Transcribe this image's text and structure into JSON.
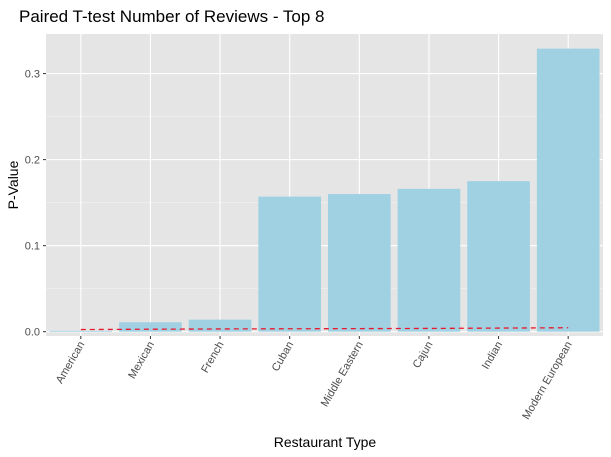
{
  "chart_data": {
    "type": "bar",
    "title": "Paired T-test Number of Reviews - Top 8",
    "xlabel": "Restaurant Type",
    "ylabel": "P-Value",
    "categories": [
      "American",
      "Mexican",
      "French",
      "Cuban",
      "Middle Eastern",
      "Cajun",
      "Indian",
      "Modern European"
    ],
    "values": [
      0.001,
      0.011,
      0.014,
      0.157,
      0.16,
      0.166,
      0.175,
      0.329
    ],
    "reference_line": {
      "style": "dashed",
      "color": "#e8192c",
      "values": [
        0.0025,
        0.0029,
        0.0032,
        0.0034,
        0.0036,
        0.0038,
        0.0042,
        0.0046
      ]
    },
    "ylim": [
      -0.005,
      0.346
    ],
    "yticks": [
      0.0,
      0.1,
      0.2,
      0.3
    ],
    "ytick_labels": [
      "0.0",
      "0.1",
      "0.2",
      "0.3"
    ],
    "grid": true,
    "colors": {
      "bar": "#a0d1e3",
      "panel": "#e5e5e5",
      "grid_major": "#ffffff",
      "grid_minor": "#f2f2f2"
    }
  }
}
